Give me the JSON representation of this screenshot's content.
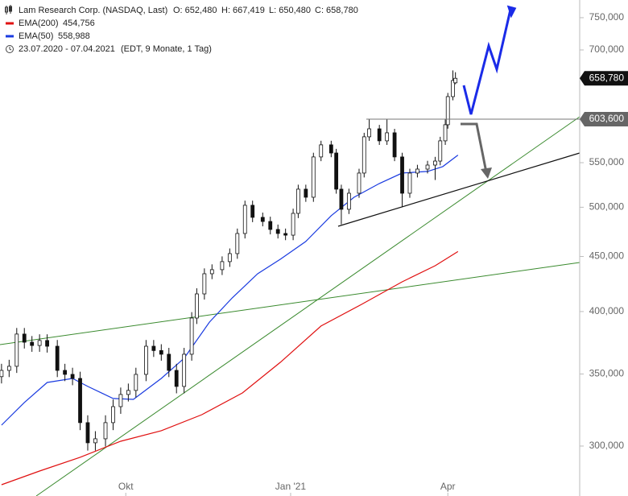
{
  "chart_data": {
    "type": "candlestick",
    "title": "Lam Research Corp. (NASDAQ, Last)",
    "ohlc_labels": [
      "O: 652,480",
      "H: 667,419",
      "L: 650,480",
      "C: 658,780"
    ],
    "period": "23.07.2020 - 07.04.2021",
    "period_note": "(EDT, 9 Monate, 1 Tag)",
    "log_scale": true,
    "xlim": [
      -0.6,
      228
    ],
    "ylim": [
      269.6,
      778.9
    ],
    "xticks": [
      {
        "value": 49,
        "label": "Okt"
      },
      {
        "value": 114,
        "label": "Jan '21"
      },
      {
        "value": 176,
        "label": "Apr"
      }
    ],
    "yticks": [
      {
        "value": 300,
        "label": "300,000"
      },
      {
        "value": 350,
        "label": "350,000"
      },
      {
        "value": 400,
        "label": "400,000"
      },
      {
        "value": 450,
        "label": "450,000"
      },
      {
        "value": 500,
        "label": "500,000"
      },
      {
        "value": 550,
        "label": "550,000"
      },
      {
        "value": 700,
        "label": "700,000"
      },
      {
        "value": 750,
        "label": "750,000"
      }
    ],
    "x": [
      0,
      3,
      6,
      9,
      12,
      15,
      18,
      22,
      25,
      28,
      31,
      34,
      37,
      41,
      44,
      47,
      50,
      53,
      57,
      60,
      63,
      66,
      69,
      72,
      75,
      77,
      80,
      83,
      87,
      90,
      93,
      96,
      99,
      103,
      106,
      109,
      112,
      115,
      117,
      120,
      123,
      126,
      130,
      132,
      134,
      137,
      141,
      143,
      145,
      149,
      152,
      155,
      158,
      161,
      164,
      168,
      171,
      173,
      175,
      176,
      178,
      179
    ],
    "open": [
      348,
      352.7,
      355.8,
      381.2,
      374.6,
      372,
      376,
      371.4,
      352.7,
      349.7,
      346.7,
      315.4,
      302.1,
      304.7,
      315.4,
      326.4,
      335,
      337.9,
      349.7,
      371.4,
      368,
      365.1,
      352.7,
      340.8,
      365.1,
      394.5,
      415.4,
      433.7,
      437.5,
      445.1,
      452.8,
      472.7,
      502.1,
      489.3,
      485,
      476.8,
      472.7,
      471,
      493.5,
      519.7,
      510.8,
      556.8,
      571.4,
      561.5,
      519.7,
      497.8,
      515.2,
      537.9,
      581.3,
      591.3,
      576.3,
      586.3,
      556.8,
      515.2,
      537.9,
      542.5,
      547.2,
      551.9,
      576.3,
      596.5,
      633.5,
      652.48
    ],
    "high": [
      357.7,
      360.8,
      386.2,
      386.2,
      379.6,
      381,
      381,
      376.4,
      357.7,
      354.7,
      351.7,
      320.4,
      309.7,
      320.4,
      331.4,
      340,
      342.9,
      354.7,
      376.4,
      376.4,
      373,
      370.1,
      357.7,
      370.1,
      399.5,
      420.4,
      438.7,
      442.5,
      450.1,
      457.8,
      477.7,
      507.1,
      507.1,
      494.3,
      490,
      481.8,
      477.7,
      498.5,
      524.7,
      524.7,
      561.8,
      576.4,
      576.4,
      566.5,
      524.7,
      520.2,
      542.9,
      586.3,
      603.6,
      596.3,
      603.6,
      591.3,
      561.8,
      542.9,
      547.5,
      552.2,
      556.9,
      581.3,
      603.6,
      638.5,
      670,
      667.419
    ],
    "low": [
      343,
      347.7,
      350.8,
      369.6,
      367,
      367,
      366.4,
      347.7,
      344.7,
      341.7,
      310.4,
      297.1,
      297.1,
      299.7,
      310.4,
      321.4,
      330,
      332.9,
      344.7,
      363,
      360.1,
      347.7,
      335.8,
      335.8,
      360.1,
      389.5,
      410.4,
      428.7,
      432.5,
      440.1,
      447.8,
      467.7,
      484.3,
      480,
      471.8,
      467.7,
      466,
      466,
      488.5,
      505.8,
      505.8,
      551.8,
      556.5,
      514.7,
      482,
      492.8,
      510.2,
      532.9,
      576.3,
      571.3,
      571.3,
      551.8,
      500,
      510.2,
      532.9,
      537.5,
      530,
      546.9,
      571.3,
      591.5,
      628.5,
      650.48
    ],
    "close": [
      352.7,
      355.8,
      381.2,
      374.6,
      372,
      376,
      371.4,
      352.7,
      349.7,
      346.7,
      315.4,
      302.1,
      304.7,
      315.4,
      326.4,
      335,
      337.9,
      349.7,
      371.4,
      368,
      365.1,
      352.7,
      340.8,
      365.1,
      394.5,
      415.4,
      433.7,
      437.5,
      445.1,
      452.8,
      472.7,
      502.1,
      489.3,
      485,
      476.8,
      472.7,
      471,
      493.5,
      519.7,
      510.8,
      556.8,
      571.4,
      561.5,
      519.7,
      497.8,
      515.2,
      537.9,
      581.3,
      591.3,
      576.3,
      586.3,
      556.8,
      515.2,
      537.9,
      542.5,
      547.2,
      551.9,
      576.3,
      596.5,
      633.5,
      655.7,
      658.78
    ],
    "series": [
      {
        "name": "EMA(200)",
        "color": "#e01010",
        "last": {
          "value": 454.756,
          "label": "454,756"
        },
        "x": [
          0,
          15,
          31,
          47,
          63,
          79,
          95,
          110,
          126,
          142,
          158,
          171,
          180
        ],
        "values": [
          276.2,
          284.4,
          292.9,
          303.1,
          310,
          320.8,
          336.1,
          358.9,
          387.8,
          406.2,
          426.3,
          441.2,
          454.756
        ]
      },
      {
        "name": "EMA(50)",
        "color": "#1a3be0",
        "last": {
          "value": 558.988,
          "label": "558,988"
        },
        "x": [
          0,
          9,
          18,
          28,
          34,
          44,
          52,
          63,
          72,
          82,
          91,
          101,
          110,
          120,
          130,
          139,
          149,
          158,
          168,
          174,
          180
        ],
        "values": [
          313.7,
          329.3,
          343.7,
          346.7,
          340.8,
          332.1,
          331.5,
          346.7,
          362,
          391.1,
          411.9,
          433.7,
          447.4,
          464.7,
          491,
          510.8,
          526,
          537.9,
          539.8,
          545.4,
          558.988
        ]
      }
    ],
    "price_labels": [
      {
        "value": 658.78,
        "label": "658,780",
        "color": "#111111"
      },
      {
        "value": 603.6,
        "label": "603,600",
        "color": "#666666"
      }
    ]
  }
}
